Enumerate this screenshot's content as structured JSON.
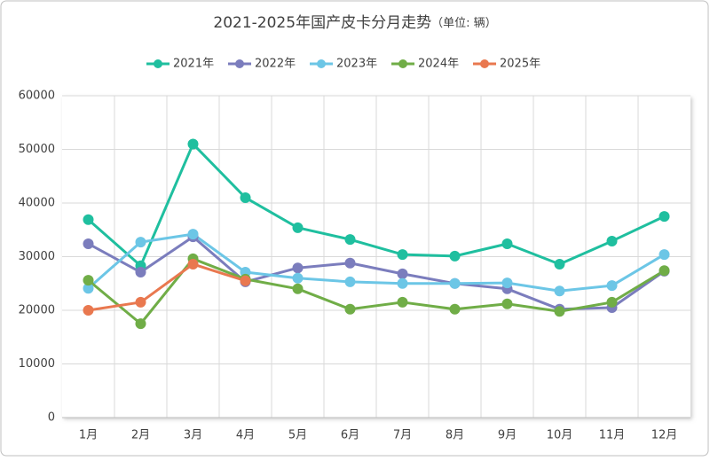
{
  "chart_data": {
    "type": "line",
    "title": "2021-2025年国产皮卡分月走势",
    "unit": "（单位: 辆）",
    "categories": [
      "1月",
      "2月",
      "3月",
      "4月",
      "5月",
      "6月",
      "7月",
      "8月",
      "9月",
      "10月",
      "11月",
      "12月"
    ],
    "series": [
      {
        "name": "2021年",
        "color": "#1fbf9f",
        "values": [
          36900,
          28300,
          51000,
          41000,
          35400,
          33200,
          30400,
          30100,
          32400,
          28600,
          32900,
          37500
        ]
      },
      {
        "name": "2022年",
        "color": "#7b7dbd",
        "values": [
          32400,
          27100,
          33700,
          25300,
          27900,
          28800,
          26800,
          25000,
          24000,
          20200,
          20500,
          27300
        ]
      },
      {
        "name": "2023年",
        "color": "#6cc6e6",
        "values": [
          24100,
          32700,
          34200,
          27100,
          26000,
          25300,
          25000,
          25000,
          25100,
          23600,
          24600,
          30400
        ]
      },
      {
        "name": "2024年",
        "color": "#70ad47",
        "values": [
          25600,
          17500,
          29600,
          25800,
          24000,
          20200,
          21500,
          20200,
          21200,
          19800,
          21500,
          27400
        ]
      },
      {
        "name": "2025年",
        "color": "#e9784f",
        "values": [
          20000,
          21500,
          28600,
          25500,
          null,
          null,
          null,
          null,
          null,
          null,
          null,
          null
        ]
      }
    ],
    "ylim": [
      0,
      60000
    ],
    "yticks": [
      0,
      10000,
      20000,
      30000,
      40000,
      50000,
      60000
    ],
    "grid": true,
    "legend": "top"
  }
}
